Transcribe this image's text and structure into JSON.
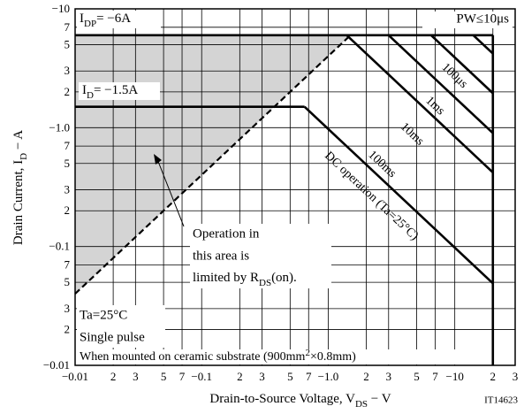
{
  "chart_data": {
    "type": "line",
    "xscale": "log",
    "yscale": "log",
    "grid": true,
    "color": "#000000",
    "area_color": "#d4d4d4",
    "xlabel": [
      "Drain-to-Source Voltage, V",
      "DS",
      "  −  V"
    ],
    "ylabel": [
      "Drain Current, I",
      "D",
      "  −  A"
    ],
    "xlim": [
      0.01,
      30
    ],
    "ylim": [
      0.01,
      10
    ],
    "xticks": [
      {
        "value": 0.01,
        "label": "−0.01"
      },
      {
        "value": 0.02,
        "label": "2"
      },
      {
        "value": 0.03,
        "label": "3"
      },
      {
        "value": 0.05,
        "label": "5"
      },
      {
        "value": 0.07,
        "label": "7"
      },
      {
        "value": 0.1,
        "label": "−0.1"
      },
      {
        "value": 0.2,
        "label": "2"
      },
      {
        "value": 0.3,
        "label": "3"
      },
      {
        "value": 0.5,
        "label": "5"
      },
      {
        "value": 0.7,
        "label": "7"
      },
      {
        "value": 1,
        "label": "−1.0"
      },
      2,
      3,
      5,
      7,
      {
        "value": 10,
        "label": "−10"
      },
      {
        "value": 20,
        "label": "2"
      },
      {
        "value": 30,
        "label": "3"
      }
    ],
    "yticks": [
      {
        "value": 0.01,
        "label": "−0.01"
      },
      {
        "value": 0.02,
        "label": "2"
      },
      {
        "value": 0.03,
        "label": "3"
      },
      {
        "value": 0.05,
        "label": "5"
      },
      {
        "value": 0.07,
        "label": "7"
      },
      {
        "value": 0.1,
        "label": "−0.1"
      },
      {
        "value": 0.2,
        "label": "2"
      },
      {
        "value": 0.3,
        "label": "3"
      },
      {
        "value": 0.5,
        "label": "5"
      },
      {
        "value": 0.7,
        "label": "7"
      },
      {
        "value": 1,
        "label": "−1.0"
      },
      2,
      3,
      5,
      7,
      {
        "value": 10,
        "label": "−10"
      }
    ],
    "series": [
      {
        "x": [
          0.01,
          20
        ],
        "values": [
          6,
          6
        ]
      },
      {
        "x": [
          0.01,
          0.65
        ],
        "values": [
          1.5,
          1.5
        ]
      },
      {
        "name": "DC operation (Ta=25°C)",
        "x": [
          0.65,
          20
        ],
        "values": [
          1.5,
          0.049
        ]
      },
      {
        "name": "100ms",
        "x": [
          1.4,
          20
        ],
        "values": [
          6,
          0.42
        ]
      },
      {
        "name": "10ms",
        "x": [
          3,
          20
        ],
        "values": [
          6,
          0.9
        ]
      },
      {
        "name": "1ms",
        "x": [
          6.5,
          20
        ],
        "values": [
          6,
          1.95
        ]
      },
      {
        "name": "100μs",
        "x": [
          14,
          20
        ],
        "values": [
          6,
          4.2
        ]
      },
      {
        "x": [
          20,
          20
        ],
        "values": [
          6,
          0.01
        ]
      },
      {
        "x": [
          0.01,
          1.5
        ],
        "values": [
          0.04,
          6
        ],
        "dashed": true
      }
    ],
    "annotations": {
      "idp": [
        "I",
        "DP",
        "= −6A"
      ],
      "id": [
        "I",
        "D",
        "= −1.5A"
      ],
      "pw": "PW≤10μs",
      "area": [
        "Operation in",
        "this area is",
        "limited by R",
        "DS",
        "(on)."
      ],
      "ta": "Ta=25°C",
      "pulse": "Single pulse",
      "mount": [
        "When mounted on ceramic substrate (900mm",
        "2",
        "×0.8mm)"
      ],
      "code": "IT14623"
    }
  }
}
